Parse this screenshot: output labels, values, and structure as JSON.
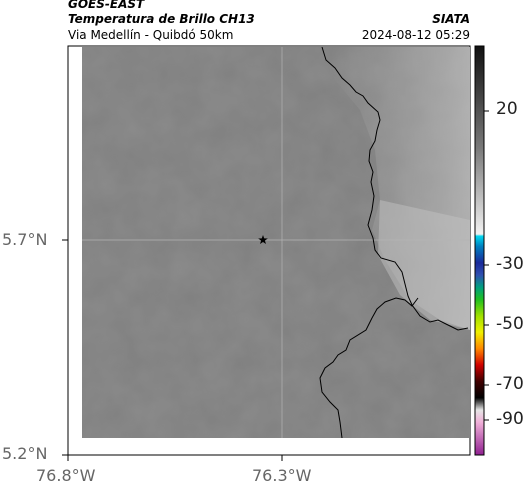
{
  "header": {
    "satellite": "GOES-EAST",
    "product": "Temperatura de Brillo CH13",
    "region": "Via Medellín - Quibdó 50km",
    "brand": "SIATA",
    "datetime": "2024-08-12 05:29"
  },
  "map": {
    "lat_ticks": [
      "5.7°N",
      "5.2°N"
    ],
    "lon_ticks": [
      "76.8°W",
      "76.3°W"
    ],
    "marker": "star-marker",
    "gridlines": true
  },
  "colorbar": {
    "labels": [
      "20",
      "-30",
      "-50",
      "-70",
      "-90"
    ],
    "colors": {
      "warm_gray_top": "#111111",
      "cold_cyan": "#00c8e0",
      "cold_blue": "#1a2a9a",
      "green": "#20c020",
      "yellow": "#f0f000",
      "orange": "#ff8800",
      "red": "#d00000",
      "magenta": "#c030c0"
    }
  }
}
